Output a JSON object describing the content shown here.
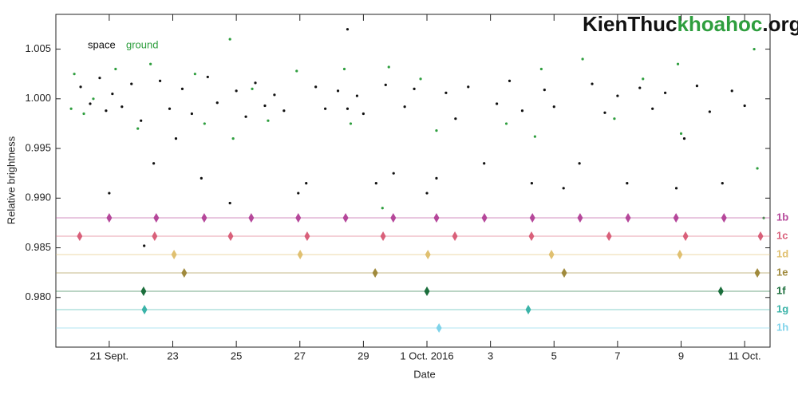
{
  "chart_data": {
    "type": "scatter",
    "xlabel": "Date",
    "ylabel": "Relative brightness",
    "xlim": [
      19.32,
      41.8
    ],
    "ylim": [
      0.975,
      1.0085
    ],
    "xticks": [
      {
        "value": 21,
        "label": "21 Sept."
      },
      23,
      25,
      27,
      29,
      {
        "value": 31,
        "label": "1 Oct. 2016"
      },
      {
        "value": 33,
        "label": "3"
      },
      {
        "value": 35,
        "label": "5"
      },
      {
        "value": 37,
        "label": "7"
      },
      {
        "value": 39,
        "label": "9"
      },
      {
        "value": 41,
        "label": "11 Oct."
      }
    ],
    "yticks": [
      {
        "value": 0.98,
        "label": "0.980"
      },
      0.985,
      {
        "value": 0.99,
        "label": "0.990"
      },
      0.995,
      {
        "value": 1,
        "label": "1.000"
      },
      1.005
    ],
    "series": [
      {
        "name": "space",
        "color": "#111111",
        "x": [
          20.1,
          20.4,
          20.7,
          20.9,
          21.1,
          21.0,
          21.4,
          21.7,
          22.0,
          22.1,
          22.4,
          22.6,
          22.9,
          23.1,
          23.3,
          23.6,
          23.9,
          24.1,
          24.4,
          24.8,
          25.0,
          25.3,
          25.6,
          25.9,
          26.2,
          26.5,
          26.95,
          27.2,
          27.5,
          27.8,
          28.2,
          28.5,
          28.5,
          28.8,
          29.0,
          29.4,
          29.7,
          29.95,
          30.3,
          30.6,
          31.0,
          31.3,
          31.6,
          31.9,
          32.3,
          32.8,
          33.2,
          33.6,
          34.0,
          34.3,
          34.7,
          35.0,
          35.3,
          35.8,
          36.2,
          36.6,
          37.0,
          37.3,
          37.7,
          38.1,
          38.5,
          38.85,
          39.1,
          39.5,
          39.9,
          40.3,
          40.6,
          41.0
        ],
        "values": [
          1.0012,
          0.9995,
          1.0021,
          0.9988,
          1.0005,
          0.9905,
          0.9992,
          1.0015,
          0.9978,
          0.9852,
          0.9935,
          1.0018,
          0.999,
          0.996,
          1.001,
          0.9985,
          0.992,
          1.0022,
          0.9996,
          0.9895,
          1.0008,
          0.9982,
          1.0016,
          0.9993,
          1.0004,
          0.9988,
          0.9905,
          0.9915,
          1.0012,
          0.999,
          1.0008,
          1.007,
          0.999,
          1.0003,
          0.9985,
          0.9915,
          1.0014,
          0.9925,
          0.9992,
          1.001,
          0.9905,
          0.992,
          1.0006,
          0.998,
          1.0012,
          0.9935,
          0.9995,
          1.0018,
          0.9988,
          0.9915,
          1.0009,
          0.9992,
          0.991,
          0.9935,
          1.0015,
          0.9986,
          1.0003,
          0.9915,
          1.0011,
          0.999,
          1.0006,
          0.991,
          0.996,
          1.0013,
          0.9987,
          0.9915,
          1.0008,
          0.9993
        ]
      },
      {
        "name": "ground",
        "color": "#2e9e3e",
        "x": [
          19.8,
          19.9,
          20.2,
          20.5,
          21.2,
          21.9,
          22.3,
          23.7,
          24.0,
          24.8,
          24.9,
          25.5,
          26.0,
          26.9,
          28.4,
          28.6,
          29.6,
          29.8,
          30.8,
          31.3,
          33.5,
          34.4,
          34.6,
          35.9,
          36.9,
          37.8,
          38.9,
          39.0,
          41.3,
          41.4,
          41.6
        ],
        "values": [
          0.999,
          1.0025,
          0.9985,
          1.0,
          1.003,
          0.997,
          1.0035,
          1.0025,
          0.9975,
          1.006,
          0.996,
          1.001,
          0.9978,
          1.0028,
          1.003,
          0.9975,
          0.989,
          1.0032,
          1.002,
          0.9968,
          0.9975,
          0.9962,
          1.003,
          1.004,
          0.998,
          1.002,
          1.0035,
          0.9965,
          1.005,
          0.993,
          0.988
        ]
      }
    ],
    "transits": [
      {
        "name": "1b",
        "color": "#b5479a",
        "x": [
          21.0,
          22.48,
          23.99,
          25.47,
          26.95,
          28.44,
          29.94,
          31.3,
          32.81,
          34.32,
          35.82,
          37.33,
          38.84,
          40.35
        ]
      },
      {
        "name": "1c",
        "color": "#d9607a",
        "x": [
          20.07,
          22.43,
          24.82,
          27.23,
          29.62,
          31.88,
          34.29,
          36.73,
          39.14,
          41.5
        ]
      },
      {
        "name": "1d",
        "color": "#e0c070",
        "x": [
          23.04,
          27.01,
          31.03,
          34.92,
          38.96
        ]
      },
      {
        "name": "1e",
        "color": "#a08a3c",
        "x": [
          23.36,
          29.37,
          35.32,
          41.4
        ]
      },
      {
        "name": "1f",
        "color": "#1b6e3c",
        "x": [
          22.08,
          31.0,
          40.25
        ]
      },
      {
        "name": "1g",
        "color": "#3ab3a8",
        "x": [
          22.11,
          34.19
        ]
      },
      {
        "name": "1h",
        "color": "#7fd3ea",
        "x": [
          31.38
        ]
      }
    ]
  },
  "watermark": {
    "part1": "KienThuc",
    "part2": "khoahoc",
    "part3": ".org"
  }
}
